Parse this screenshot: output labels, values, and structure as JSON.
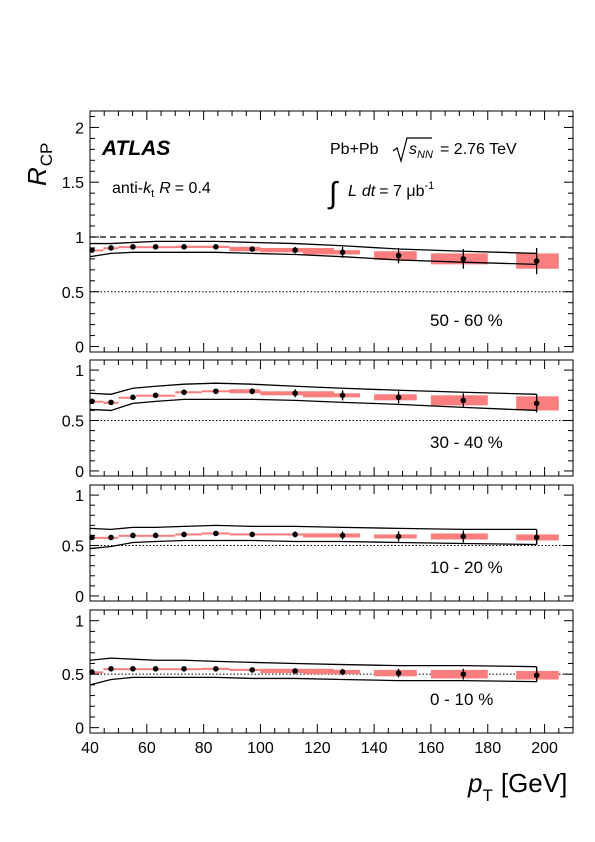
{
  "figure": {
    "experiment": "ATLAS",
    "ylabel_main": "R",
    "ylabel_sub": "CP",
    "xlabel_main": "p",
    "xlabel_sub": "T",
    "xlabel_unit": "[GeV]",
    "jet_prefix": "anti-",
    "jet_k": "k",
    "jet_t": "t",
    "jet_R": "R",
    "jet_value": "= 0.4",
    "system": "Pb+Pb",
    "sqrt_s": "s",
    "sqrt_sub": "NN",
    "energy": "= 2.76 TeV",
    "integral": "∫",
    "lumi_L": "L",
    "lumi_dt": "dt",
    "lumi_value": "= 7 μb",
    "lumi_exp": "-1"
  },
  "chart_data": {
    "type": "scatter",
    "xlim": [
      40,
      210
    ],
    "x_ticks": [
      40,
      60,
      80,
      100,
      120,
      140,
      160,
      180,
      200
    ],
    "x_tick_labels": [
      "40",
      "60",
      "80",
      "100",
      "120",
      "140",
      "160",
      "180",
      "200"
    ],
    "reference_line_top": 1.0,
    "colors": {
      "sys_box": "#fa7e7e",
      "marker": "#000000",
      "band": "#000000"
    },
    "x": [
      40.7,
      47.4,
      55.1,
      63.1,
      73.1,
      84.3,
      97.1,
      112.2,
      128.9,
      148.6,
      171.4,
      197.2
    ],
    "x_bin_low": [
      40,
      44.7,
      50,
      56.2,
      70,
      79.4,
      89.1,
      100,
      115,
      140,
      160,
      190
    ],
    "x_bin_high": [
      44.7,
      50,
      56.2,
      70,
      79.4,
      89.1,
      100,
      125.9,
      135,
      155,
      180,
      205
    ],
    "panels": [
      {
        "label": "50 - 60 %",
        "ylim": [
          -0.05,
          2.15
        ],
        "y_ticks": [
          0,
          0.5,
          1,
          1.5,
          2
        ],
        "y_tick_labels": [
          "0",
          "0.5",
          "1",
          "1.5",
          "2"
        ],
        "ref_line": 0.5,
        "values": [
          0.88,
          0.9,
          0.91,
          0.91,
          0.91,
          0.91,
          0.89,
          0.88,
          0.86,
          0.83,
          0.8,
          0.78
        ],
        "stat_err": [
          0.02,
          0.01,
          0.01,
          0.01,
          0.01,
          0.02,
          0.02,
          0.03,
          0.05,
          0.07,
          0.09,
          0.12
        ],
        "sys_err": [
          0.0,
          0.0,
          0.0,
          0.0,
          0.01,
          0.01,
          0.02,
          0.02,
          0.02,
          0.04,
          0.05,
          0.07
        ],
        "band_upper": [
          0.94,
          0.94,
          0.95,
          0.96,
          0.96,
          0.96,
          0.95,
          0.94,
          0.92,
          0.89,
          0.87,
          0.85
        ],
        "band_lower": [
          0.82,
          0.85,
          0.86,
          0.86,
          0.86,
          0.86,
          0.85,
          0.84,
          0.82,
          0.79,
          0.77,
          0.75
        ]
      },
      {
        "label": "30 - 40 %",
        "ylim": [
          -0.05,
          1.1
        ],
        "y_ticks": [
          0,
          0.5,
          1
        ],
        "y_tick_labels": [
          "0",
          "0.5",
          "1"
        ],
        "ref_line": 0.5,
        "values": [
          0.69,
          0.68,
          0.73,
          0.75,
          0.78,
          0.79,
          0.79,
          0.77,
          0.75,
          0.73,
          0.7,
          0.67
        ],
        "stat_err": [
          0.02,
          0.01,
          0.01,
          0.01,
          0.02,
          0.02,
          0.03,
          0.04,
          0.05,
          0.06,
          0.07,
          0.09
        ],
        "sys_err": [
          0.0,
          0.0,
          0.0,
          0.0,
          0.01,
          0.01,
          0.02,
          0.02,
          0.02,
          0.03,
          0.05,
          0.07
        ],
        "band_upper": [
          0.77,
          0.76,
          0.82,
          0.84,
          0.86,
          0.87,
          0.86,
          0.84,
          0.82,
          0.8,
          0.78,
          0.76
        ],
        "band_lower": [
          0.61,
          0.6,
          0.67,
          0.69,
          0.71,
          0.71,
          0.71,
          0.7,
          0.68,
          0.66,
          0.63,
          0.6
        ]
      },
      {
        "label": "10 - 20 %",
        "ylim": [
          -0.05,
          1.1
        ],
        "y_ticks": [
          0,
          0.5,
          1
        ],
        "y_tick_labels": [
          "0",
          "0.5",
          "1"
        ],
        "ref_line": 0.5,
        "values": [
          0.58,
          0.58,
          0.6,
          0.6,
          0.61,
          0.62,
          0.61,
          0.61,
          0.6,
          0.59,
          0.59,
          0.58
        ],
        "stat_err": [
          0.01,
          0.01,
          0.01,
          0.01,
          0.01,
          0.02,
          0.02,
          0.03,
          0.04,
          0.05,
          0.06,
          0.07
        ],
        "sys_err": [
          0.0,
          0.0,
          0.0,
          0.0,
          0.01,
          0.01,
          0.01,
          0.01,
          0.02,
          0.02,
          0.03,
          0.03
        ],
        "band_upper": [
          0.67,
          0.66,
          0.68,
          0.68,
          0.69,
          0.7,
          0.69,
          0.69,
          0.68,
          0.67,
          0.66,
          0.66
        ],
        "band_lower": [
          0.47,
          0.49,
          0.53,
          0.54,
          0.55,
          0.55,
          0.55,
          0.54,
          0.54,
          0.53,
          0.52,
          0.51
        ]
      },
      {
        "label": "0 - 10 %",
        "ylim": [
          -0.05,
          1.1
        ],
        "y_ticks": [
          0,
          0.5,
          1
        ],
        "y_tick_labels": [
          "0",
          "0.5",
          "1"
        ],
        "ref_line": 0.5,
        "values": [
          0.52,
          0.55,
          0.55,
          0.55,
          0.55,
          0.55,
          0.54,
          0.53,
          0.52,
          0.51,
          0.5,
          0.49
        ],
        "stat_err": [
          0.01,
          0.01,
          0.01,
          0.01,
          0.01,
          0.01,
          0.02,
          0.02,
          0.03,
          0.04,
          0.05,
          0.06
        ],
        "sys_err": [
          0.0,
          0.0,
          0.0,
          0.0,
          0.0,
          0.01,
          0.01,
          0.02,
          0.02,
          0.03,
          0.04,
          0.04
        ],
        "band_upper": [
          0.63,
          0.65,
          0.64,
          0.63,
          0.63,
          0.62,
          0.61,
          0.6,
          0.59,
          0.58,
          0.58,
          0.57
        ],
        "band_lower": [
          0.4,
          0.45,
          0.47,
          0.47,
          0.47,
          0.47,
          0.46,
          0.46,
          0.45,
          0.44,
          0.44,
          0.43
        ]
      }
    ]
  }
}
